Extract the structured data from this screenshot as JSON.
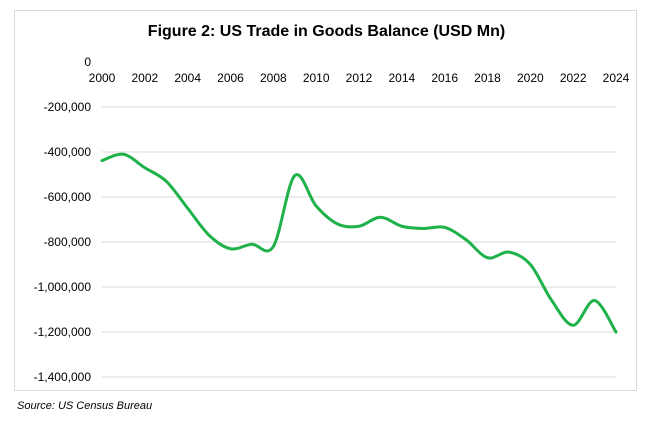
{
  "chart_data": {
    "type": "line",
    "title": "Figure 2: US Trade in Goods Balance (USD Mn)",
    "xlabel": "",
    "ylabel": "",
    "x": [
      2000,
      2001,
      2002,
      2003,
      2004,
      2005,
      2006,
      2007,
      2008,
      2009,
      2010,
      2011,
      2012,
      2013,
      2014,
      2015,
      2016,
      2017,
      2018,
      2019,
      2020,
      2021,
      2022,
      2023,
      2024
    ],
    "series": [
      {
        "values": [
          -438000,
          -410000,
          -470000,
          -530000,
          -650000,
          -770000,
          -830000,
          -810000,
          -820000,
          -505000,
          -640000,
          -720000,
          -730000,
          -690000,
          -730000,
          -740000,
          -735000,
          -790000,
          -870000,
          -845000,
          -900000,
          -1060000,
          -1170000,
          -1060000,
          -1200000
        ],
        "color": "#1fb24a"
      }
    ],
    "xlim": [
      2000,
      2024
    ],
    "ylim": [
      -1400000,
      0
    ],
    "x_ticks": [
      "2000",
      "2002",
      "2004",
      "2006",
      "2008",
      "2010",
      "2012",
      "2014",
      "2016",
      "2018",
      "2020",
      "2022",
      "2024"
    ],
    "y_ticks": [
      "0",
      "-200,000",
      "-400,000",
      "-600,000",
      "-800,000",
      "-1,000,000",
      "-1,200,000",
      "-1,400,000"
    ],
    "x_axis_position": "top",
    "grid": true,
    "legend": "none"
  },
  "source": "Source: US Census Bureau",
  "colors": {
    "line": "#1fb24a",
    "grid": "#d9d9d9",
    "text": "#000000"
  }
}
